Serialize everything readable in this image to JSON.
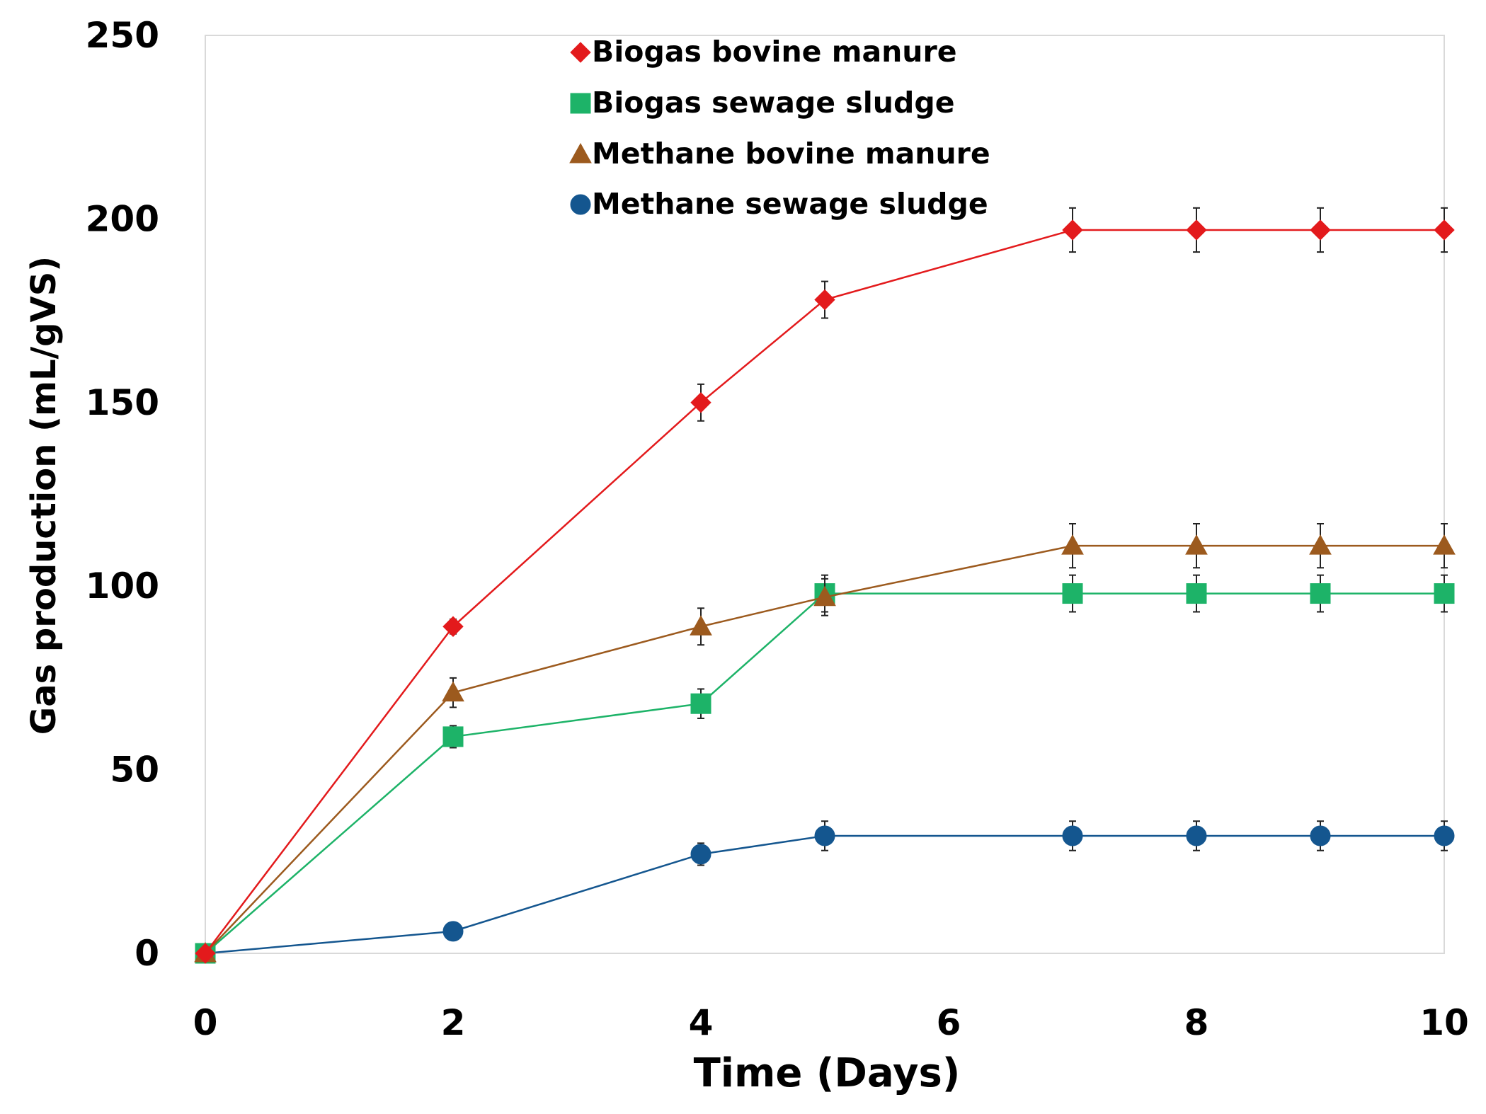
{
  "chart_data": {
    "type": "line",
    "title": "",
    "xlabel": "Time (Days)",
    "ylabel": "Gas production (mL/gVS)",
    "xlim": [
      0,
      10
    ],
    "ylim": [
      0,
      250
    ],
    "xticks": [
      "0",
      "2",
      "4",
      "6",
      "8",
      "10"
    ],
    "yticks": [
      "0",
      "50",
      "100",
      "150",
      "200",
      "250"
    ],
    "grid": false,
    "legend_position": "top-center",
    "series": [
      {
        "name": "Biogas bovine manure",
        "color": "#e31a1c",
        "marker": "diamond",
        "x": [
          0,
          2,
          4,
          5,
          7,
          8,
          9,
          10
        ],
        "y": [
          0,
          89,
          150,
          178,
          197,
          197,
          197,
          197
        ],
        "error": [
          0,
          2,
          5,
          5,
          6,
          6,
          6,
          6
        ]
      },
      {
        "name": "Biogas sewage sludge",
        "color": "#1db368",
        "marker": "square",
        "x": [
          0,
          2,
          4,
          5,
          7,
          8,
          9,
          10
        ],
        "y": [
          0,
          59,
          68,
          98,
          98,
          98,
          98,
          98
        ],
        "error": [
          0,
          3,
          4,
          5,
          5,
          5,
          5,
          5
        ]
      },
      {
        "name": "Methane bovine manure",
        "color": "#9c5a1e",
        "marker": "triangle",
        "x": [
          0,
          2,
          4,
          5,
          7,
          8,
          9,
          10
        ],
        "y": [
          0,
          71,
          89,
          97,
          111,
          111,
          111,
          111
        ],
        "error": [
          0,
          4,
          5,
          5,
          6,
          6,
          6,
          6
        ]
      },
      {
        "name": "Methane sewage sludge",
        "color": "#14568f",
        "marker": "circle",
        "x": [
          0,
          2,
          4,
          5,
          7,
          8,
          9,
          10
        ],
        "y": [
          0,
          6,
          27,
          32,
          32,
          32,
          32,
          32
        ],
        "error": [
          0,
          1,
          3,
          4,
          4,
          4,
          4,
          4
        ]
      }
    ]
  }
}
